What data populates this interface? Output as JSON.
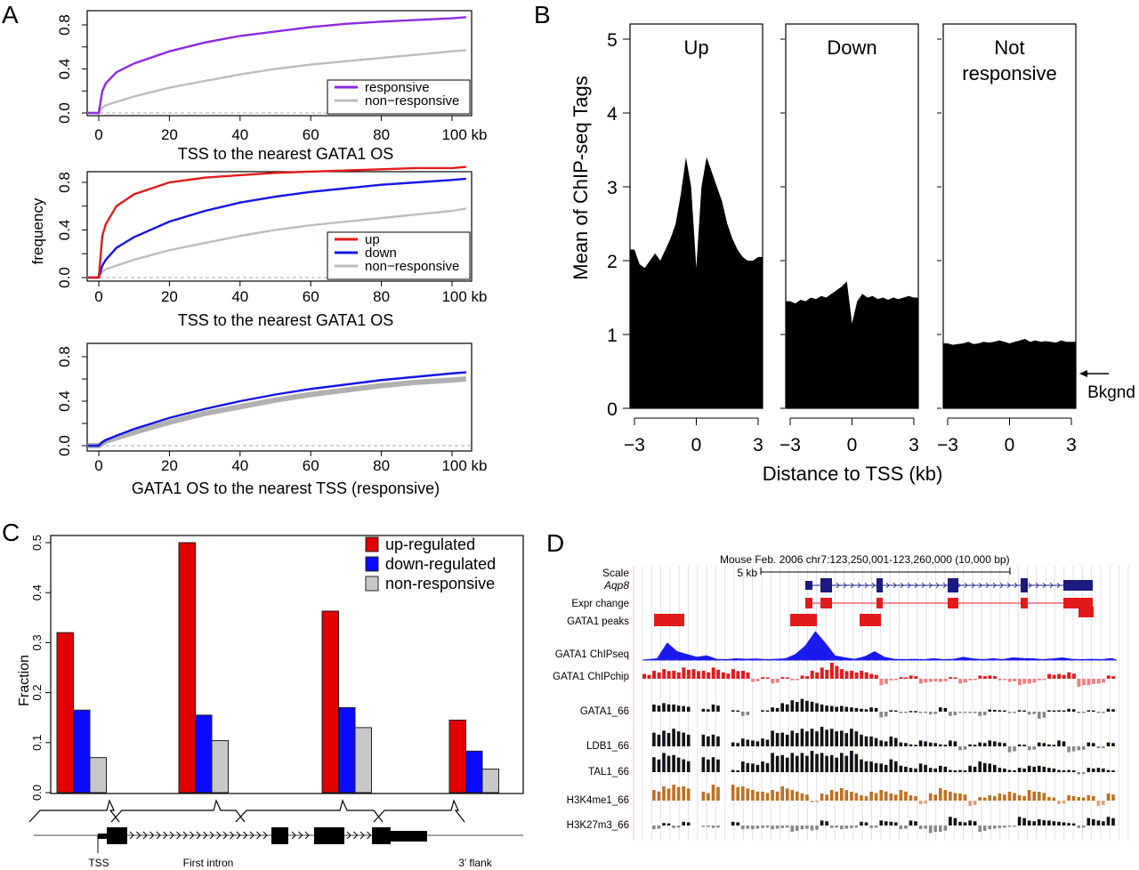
{
  "panel_labels": [
    "A",
    "B",
    "C",
    "D"
  ],
  "chart_data": [
    {
      "panel": "A",
      "type": "line",
      "xlabel": "TSS to the nearest GATA1 OS",
      "ylabel": "",
      "x_tick_labels": [
        "0",
        "20",
        "40",
        "60",
        "80",
        "100 kb"
      ],
      "y_tick_labels": [
        "0.0",
        "0.4",
        "0.8"
      ],
      "xlim": [
        -3,
        104
      ],
      "ylim": [
        0,
        0.9
      ],
      "legend_position": "bottom-right",
      "x": [
        0,
        1,
        2,
        5,
        10,
        20,
        30,
        40,
        50,
        60,
        70,
        80,
        90,
        100,
        104
      ],
      "series": [
        {
          "name": "responsive",
          "color": "#8a2be2",
          "values": [
            0,
            0.2,
            0.27,
            0.37,
            0.45,
            0.56,
            0.64,
            0.7,
            0.74,
            0.78,
            0.81,
            0.83,
            0.845,
            0.86,
            0.87
          ]
        },
        {
          "name": "non−responsive",
          "color": "#bdbdbd",
          "values": [
            0,
            0.05,
            0.07,
            0.1,
            0.15,
            0.23,
            0.29,
            0.35,
            0.4,
            0.44,
            0.47,
            0.5,
            0.53,
            0.56,
            0.57
          ]
        }
      ]
    },
    {
      "panel": "A",
      "type": "line",
      "xlabel": "TSS to the nearest GATA1 OS",
      "ylabel": "frequency",
      "x_tick_labels": [
        "0",
        "20",
        "40",
        "60",
        "80",
        "100 kb"
      ],
      "y_tick_labels": [
        "0.0",
        "0.4",
        "0.8"
      ],
      "xlim": [
        -3,
        104
      ],
      "ylim": [
        0,
        0.9
      ],
      "legend_position": "bottom-right",
      "x": [
        0,
        1,
        2,
        5,
        10,
        20,
        30,
        40,
        50,
        60,
        70,
        80,
        90,
        100,
        104
      ],
      "series": [
        {
          "name": "up",
          "color": "#e31a1c",
          "values": [
            0,
            0.35,
            0.45,
            0.6,
            0.7,
            0.8,
            0.84,
            0.86,
            0.88,
            0.89,
            0.9,
            0.91,
            0.92,
            0.92,
            0.93
          ]
        },
        {
          "name": "down",
          "color": "#1414e6",
          "values": [
            0,
            0.1,
            0.15,
            0.25,
            0.34,
            0.47,
            0.56,
            0.63,
            0.68,
            0.72,
            0.75,
            0.78,
            0.8,
            0.82,
            0.83
          ]
        },
        {
          "name": "non−responsive",
          "color": "#bdbdbd",
          "values": [
            0,
            0.05,
            0.07,
            0.1,
            0.15,
            0.23,
            0.29,
            0.35,
            0.4,
            0.44,
            0.47,
            0.5,
            0.53,
            0.56,
            0.58
          ]
        }
      ]
    },
    {
      "panel": "A",
      "type": "line",
      "xlabel": "GATA1 OS to the nearest TSS (responsive)",
      "ylabel": "",
      "x_tick_labels": [
        "0",
        "20",
        "40",
        "60",
        "80",
        "100 kb"
      ],
      "y_tick_labels": [
        "0.0",
        "0.4",
        "0.8"
      ],
      "xlim": [
        -3,
        104
      ],
      "ylim": [
        0,
        0.9
      ],
      "x": [
        0,
        1,
        2,
        5,
        10,
        20,
        30,
        40,
        50,
        60,
        70,
        80,
        90,
        100,
        104
      ],
      "series": [
        {
          "color": "#1414e6",
          "values": [
            0,
            0.03,
            0.05,
            0.09,
            0.15,
            0.25,
            0.33,
            0.4,
            0.46,
            0.51,
            0.55,
            0.59,
            0.62,
            0.65,
            0.66
          ]
        },
        {
          "color": "#b0b0b0",
          "values": [
            0,
            0.02,
            0.04,
            0.07,
            0.12,
            0.21,
            0.29,
            0.35,
            0.41,
            0.46,
            0.5,
            0.54,
            0.57,
            0.59,
            0.6
          ]
        }
      ]
    },
    {
      "panel": "B",
      "type": "area",
      "ylabel": "Mean of ChIP-seq Tags",
      "xlabel": "Distance to TSS (kb)",
      "y_tick_labels": [
        "0",
        "1",
        "2",
        "3",
        "4",
        "5"
      ],
      "x_tick_labels": [
        "−3",
        "0",
        "3"
      ],
      "xlim": [
        -3,
        3
      ],
      "ylim": [
        0,
        5
      ],
      "x": [
        -3,
        -2.75,
        -2.5,
        -2.25,
        -2,
        -1.75,
        -1.5,
        -1.25,
        -1,
        -0.75,
        -0.5,
        -0.25,
        0,
        0.25,
        0.5,
        0.75,
        1,
        1.25,
        1.5,
        1.75,
        2,
        2.25,
        2.5,
        2.75,
        3
      ],
      "facets": [
        {
          "label": [
            "Up"
          ],
          "values": [
            2.15,
            1.95,
            1.9,
            2.0,
            2.1,
            2.0,
            2.15,
            2.3,
            2.5,
            2.9,
            3.4,
            3.0,
            1.9,
            3.0,
            3.4,
            3.2,
            3.0,
            2.8,
            2.5,
            2.3,
            2.15,
            2.05,
            2.0,
            2.0,
            2.05
          ]
        },
        {
          "label": [
            "Down"
          ],
          "values": [
            1.45,
            1.42,
            1.47,
            1.45,
            1.5,
            1.48,
            1.52,
            1.5,
            1.55,
            1.6,
            1.65,
            1.72,
            1.15,
            1.45,
            1.55,
            1.5,
            1.52,
            1.48,
            1.5,
            1.47,
            1.5,
            1.48,
            1.5,
            1.52,
            1.5
          ]
        },
        {
          "label": [
            "Not",
            "responsive"
          ],
          "values": [
            0.88,
            0.86,
            0.87,
            0.88,
            0.9,
            0.87,
            0.88,
            0.9,
            0.89,
            0.9,
            0.92,
            0.9,
            0.88,
            0.9,
            0.92,
            0.94,
            0.9,
            0.92,
            0.9,
            0.91,
            0.9,
            0.89,
            0.92,
            0.9,
            0.9
          ]
        }
      ],
      "annotation": {
        "text": "Bkgnd",
        "value": 0.45
      }
    },
    {
      "panel": "C",
      "type": "bar",
      "ylabel": "Fraction",
      "y_tick_labels": [
        "0.0",
        "0.1",
        "0.2",
        "0.3",
        "0.4",
        "0.5"
      ],
      "ylim": [
        0,
        0.5
      ],
      "categories": [
        "TSS",
        "First intron",
        "",
        "3’ flank"
      ],
      "legend_position": "top-right",
      "series": [
        {
          "name": "up-regulated",
          "color": "#e00000",
          "values": [
            0.32,
            0.5,
            0.363,
            0.145
          ]
        },
        {
          "name": "down-regulated",
          "color": "#0a0aff",
          "values": [
            0.165,
            0.155,
            0.17,
            0.083
          ]
        },
        {
          "name": "non-responsive",
          "color": "#c8c8c8",
          "values": [
            0.07,
            0.104,
            0.13,
            0.047
          ]
        }
      ]
    }
  ],
  "browser": {
    "header": "Mouse Feb. 2006   chr7:123,250,001-123,260,000 (10,000 bp)",
    "scale_label": "Scale",
    "scale_bar": "5 kb",
    "gene_name": "Aqp8",
    "colors": {
      "gene": "#1a1a80",
      "red": "#e31a1c",
      "blue": "#1a1aee",
      "pink": "#f08080",
      "black": "#111111",
      "grey": "#888888",
      "orange": "#c07020"
    },
    "track_labels": [
      {
        "text": "Expr change",
        "color": "#000000"
      },
      {
        "text": "GATA1 peaks",
        "color": "#e31a1c"
      },
      {
        "text": "GATA1 ChIPseq",
        "color": "#1a1aee"
      },
      {
        "text": "GATA1 ChIPchip",
        "color": "#e31a1c"
      },
      {
        "text": "GATA1_66",
        "color": "#000000"
      },
      {
        "text": "LDB1_66",
        "color": "#000000"
      },
      {
        "text": "TAL1_66",
        "color": "#000000"
      },
      {
        "text": "H3K4me1_66",
        "color": "#c07020"
      },
      {
        "text": "H3K27m3_66",
        "color": "#000000"
      }
    ],
    "chipseq": [
      0.02,
      0.05,
      0.6,
      0.3,
      0.2,
      0.1,
      0.15,
      0.03,
      0.02,
      0.05,
      0.03,
      0.04,
      0.02,
      0.03,
      0.05,
      0.2,
      0.5,
      1.0,
      0.6,
      0.15,
      0.08,
      0.03,
      0.12,
      0.3,
      0.1,
      0.03,
      0.02,
      0.03,
      0.02,
      0.05,
      0.02,
      0.03,
      0.1,
      0.04,
      0.02,
      0.05,
      0.02,
      0.08,
      0.06,
      0.05,
      0.02,
      0.04,
      0.08,
      0.03,
      0.02,
      0.03,
      0.02,
      0.06
    ],
    "chipchip": [
      0.3,
      0.5,
      0.6,
      0.5,
      0.7,
      0.6,
      0.5,
      0.7,
      0.4,
      0.6,
      0.5,
      -0.2,
      0.1,
      -0.3,
      0.1,
      -0.1,
      0.2,
      0.5,
      0.7,
      1.0,
      0.6,
      0.5,
      0.5,
      0.3,
      -0.4,
      -0.1,
      0.1,
      0.2,
      -0.3,
      -0.2,
      -0.2,
      0.1,
      -0.3,
      -0.1,
      0.2,
      0.2,
      -0.1,
      -0.2,
      -0.4,
      -0.3,
      -0.1,
      0.3,
      0.3,
      0.4,
      -0.5,
      -0.4,
      -0.3,
      0.2
    ],
    "tracks": [
      [
        0,
        0.5,
        0.6,
        0.5,
        0.4,
        null,
        0.2,
        0.5,
        null,
        0.1,
        -0.3,
        null,
        0.1,
        0.3,
        0.6,
        0.8,
        0.9,
        0.7,
        0.5,
        0.4,
        0.4,
        0.3,
        0.2,
        0.3,
        -0.4,
        0.1,
        -0.1,
        0.05,
        -0.1,
        -0.2,
        0.3,
        -0.3,
        -0.05,
        -0.05,
        -0.3,
        0.15,
        0.1,
        -0.1,
        0.1,
        -0.2,
        -0.5,
        0.1,
        0.1,
        0.2,
        -0.1,
        0.1,
        -0.1,
        0.2
      ],
      [
        0,
        0.7,
        0.8,
        0.9,
        0.7,
        null,
        0.6,
        0.6,
        null,
        0.2,
        0.4,
        0.3,
        0.4,
        0.8,
        0.7,
        0.8,
        0.9,
        0.9,
        1.0,
        0.9,
        0.8,
        0.9,
        0.6,
        0.5,
        0.3,
        0.5,
        0.2,
        0.1,
        0.3,
        0.2,
        0.1,
        0.3,
        -0.2,
        0.1,
        0.2,
        0.3,
        0.2,
        -0.3,
        0.1,
        -0.2,
        0.2,
        0.1,
        0.3,
        -0.3,
        -0.2,
        0.2,
        -0.1,
        0.2
      ],
      [
        0,
        0.7,
        0.9,
        0.8,
        0.6,
        null,
        0.7,
        0.7,
        null,
        0.1,
        0.5,
        0.4,
        0.5,
        0.9,
        0.8,
        0.9,
        0.9,
        1.0,
        0.9,
        0.8,
        0.9,
        1.0,
        0.6,
        0.5,
        0.4,
        0.6,
        0.3,
        0.2,
        0.4,
        0.2,
        0.3,
        0.1,
        0.1,
        0.3,
        0.5,
        0.4,
        0.2,
        0.1,
        0.2,
        0.3,
        0.3,
        0.2,
        0.1,
        0.1,
        -0.1,
        0.2,
        0.2,
        0.1
      ],
      [
        0,
        0.6,
        0.8,
        0.9,
        0.8,
        null,
        0.5,
        0.9,
        null,
        0.9,
        0.8,
        0.6,
        0.5,
        0.6,
        0.8,
        0.6,
        0.4,
        -0.1,
        0.4,
        0.6,
        0.7,
        0.5,
        0.3,
        0.5,
        0.6,
        0.4,
        0.6,
        0.3,
        -0.2,
        0.4,
        0.7,
        0.5,
        0.4,
        -0.3,
        0.2,
        0.3,
        0.4,
        0.5,
        0.3,
        0.6,
        0.5,
        0.2,
        -0.2,
        0.3,
        0.2,
        0.3,
        -0.3,
        0.4
      ],
      [
        0,
        -0.3,
        0.2,
        -0.2,
        0.3,
        null,
        -0.1,
        -0.2,
        null,
        0.3,
        -0.3,
        -0.3,
        -0.2,
        -0.3,
        -0.2,
        -0.5,
        -0.3,
        -0.4,
        0.4,
        -0.2,
        -0.3,
        -0.2,
        0.3,
        -0.2,
        0.4,
        0.3,
        -0.3,
        0.4,
        -0.3,
        -0.6,
        -0.5,
        0.7,
        0.3,
        0.4,
        -0.5,
        -0.3,
        -0.2,
        -0.1,
        0.7,
        0.4,
        0.5,
        0.4,
        0.3,
        0.2,
        -0.2,
        0.6,
        0.4,
        0.7
      ]
    ],
    "track_colors": [
      "black",
      "black",
      "black",
      "orange",
      "black"
    ]
  }
}
